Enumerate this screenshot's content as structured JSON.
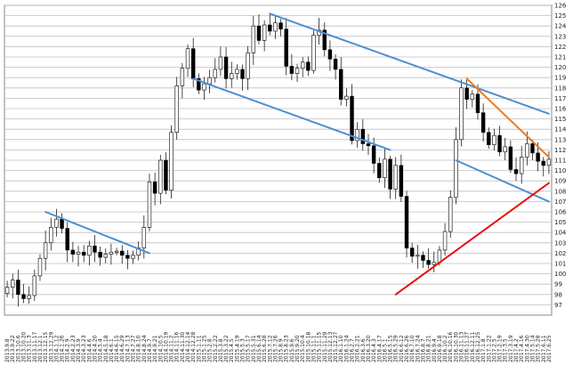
{
  "chart_data": {
    "type": "candlestick",
    "title": "",
    "xlabel": "",
    "ylabel": "",
    "ylim": [
      96,
      126
    ],
    "y_ticks": [
      97,
      98,
      99,
      100,
      101,
      102,
      103,
      104,
      105,
      106,
      107,
      108,
      109,
      110,
      111,
      112,
      113,
      114,
      115,
      116,
      117,
      118,
      119,
      120,
      121,
      122,
      123,
      124,
      125,
      126
    ],
    "y_axis_position": "right",
    "grid": "horizontal",
    "background": "#ffffff",
    "colors": {
      "up_body": "#ffffff",
      "down_body": "#000000",
      "wick": "#000000",
      "grid": "#bfbfbf",
      "blue_line": "#4f8fd0",
      "orange_line": "#f07a1e",
      "red_line": "#e81010"
    },
    "x_tick_labels": [
      "2013.9.8",
      "2013.9.22",
      "2013.10.6",
      "2013.10.20",
      "2013.11.3",
      "2013.11.17",
      "2013.12.1",
      "2013.12.15",
      "2013.12.29",
      "2014.1.12",
      "2014.1.26",
      "2014.2.9",
      "2014.2.23",
      "2014.3.9",
      "2014.3.23",
      "2014.4.6",
      "2014.4.20",
      "2014.5.4",
      "2014.5.18",
      "2014.6.1",
      "2014.6.15",
      "2014.6.29",
      "2014.7.13",
      "2014.7.27",
      "2014.8.10",
      "2014.8.24",
      "2014.9.7",
      "2014.9.21",
      "2014.10.5",
      "2014.10.19",
      "2014.11.2",
      "2014.11.16",
      "2014.11.30",
      "2014.12.14",
      "2014.12.28",
      "2015.1.11",
      "2015.1.25",
      "2015.2.8",
      "2015.2.22",
      "2015.3.8",
      "2015.3.22",
      "2015.4.5",
      "2015.4.19",
      "2015.5.3",
      "2015.5.17",
      "2015.5.31",
      "2015.6.14",
      "2015.6.28",
      "2015.7.12",
      "2015.7.26",
      "2015.8.9",
      "2015.8.23",
      "2015.9.6",
      "2015.9.20",
      "2015.10.4",
      "2015.10.18",
      "2015.11.1",
      "2015.11.15",
      "2015.11.29",
      "2015.12.13",
      "2015.12.27",
      "2016.1.10",
      "2016.1.24",
      "2016.2.7",
      "2016.2.21",
      "2016.3.6",
      "2016.3.20",
      "2016.4.3",
      "2016.4.17",
      "2016.5.1",
      "2016.5.15",
      "2016.5.29",
      "2016.6.12",
      "2016.6.26",
      "2016.7.10",
      "2016.7.24",
      "2016.8.7",
      "2016.8.21",
      "2016.9.4",
      "2016.9.18",
      "2016.10.2",
      "2016.10.16",
      "2016.10.30",
      "2016.11.13",
      "2016.11.27",
      "2016.12.11",
      "2016.12.25",
      "2017.1.8",
      "2017.1.22",
      "2017.2.5",
      "2017.2.19",
      "2017.3.5",
      "2017.3.19",
      "2017.4.2",
      "2017.4.16",
      "2017.4.30",
      "2017.5.14",
      "2017.5.28",
      "2017.6.11",
      "2017.6.25"
    ],
    "closes": [
      98.7,
      99.4,
      98.0,
      97.6,
      97.9,
      99.8,
      101.5,
      103.0,
      104.5,
      105.3,
      104.4,
      102.3,
      101.9,
      102.1,
      101.8,
      102.7,
      102.1,
      101.6,
      101.9,
      102.1,
      102.2,
      101.8,
      101.5,
      101.8,
      102.5,
      104.5,
      108.9,
      107.8,
      111.0,
      108.1,
      113.7,
      118.2,
      119.9,
      121.8,
      118.9,
      117.8,
      118.4,
      119.0,
      119.8,
      121.0,
      118.9,
      119.4,
      119.8,
      118.9,
      121.4,
      124.0,
      122.6,
      124.1,
      123.5,
      124.3,
      123.7,
      120.1,
      119.4,
      119.9,
      120.5,
      119.7,
      123.1,
      123.6,
      121.7,
      120.8,
      119.8,
      116.9,
      117.2,
      112.9,
      114.0,
      112.6,
      112.4,
      110.7,
      109.3,
      111.1,
      108.2,
      110.5,
      107.5,
      102.5,
      101.7,
      101.8,
      101.3,
      100.9,
      101.1,
      102.3,
      104.1,
      107.4,
      113.0,
      118.0,
      116.9,
      117.4,
      115.6,
      113.7,
      112.5,
      113.4,
      111.8,
      112.3,
      110.1,
      109.7,
      111.3,
      112.6,
      111.7,
      110.9,
      110.5,
      111.1
    ]
  },
  "annotations": {
    "trendlines": [
      {
        "color": "blue",
        "from": [
          "2013.12.15",
          106.0
        ],
        "to": [
          "2014.9.7",
          102.0
        ]
      },
      {
        "color": "blue",
        "from": [
          "2015.7.12",
          125.2
        ],
        "to": [
          "2017.6.25",
          115.5
        ]
      },
      {
        "color": "blue",
        "from": [
          "2014.12.28",
          118.9
        ],
        "to": [
          "2016.5.15",
          112.0
        ]
      },
      {
        "color": "blue",
        "from": [
          "2016.10.30",
          111.0
        ],
        "to": [
          "2017.6.25",
          107.0
        ]
      },
      {
        "color": "orange",
        "from": [
          "2016.11.27",
          118.9
        ],
        "to": [
          "2017.6.25",
          111.3
        ]
      },
      {
        "color": "red",
        "from": [
          "2016.5.29",
          98.0
        ],
        "to": [
          "2017.6.25",
          108.8
        ]
      }
    ]
  }
}
